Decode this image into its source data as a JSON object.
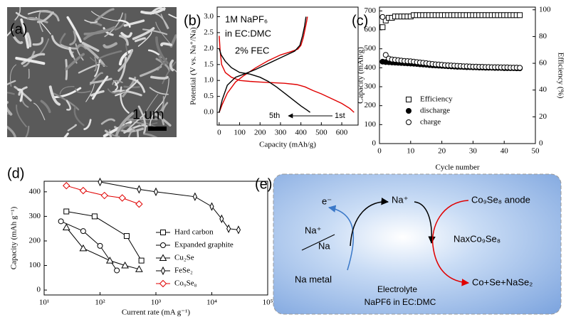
{
  "panel_a": {
    "label": "(a)",
    "scale_bar": "1 um"
  },
  "chart_data": [
    {
      "type": "line",
      "panel_label": "(b)",
      "annotations": [
        "1M NaPF₆",
        "in EC:DMC",
        "2% FEC",
        "5th",
        "1st"
      ],
      "xlabel": "Capacity (mAh/g)",
      "ylabel": "Potential (V vs. Na⁺/Na)",
      "xlim": [
        -10,
        680
      ],
      "xticks": [
        0,
        100,
        200,
        300,
        400,
        500,
        600
      ],
      "ylim": [
        -0.4,
        3.3
      ],
      "yticks": [
        {
          "value": 0,
          "label": "0.0"
        },
        0.5,
        {
          "value": 1,
          "label": "1.0"
        },
        1.5,
        {
          "value": 2,
          "label": "2.0"
        },
        2.5,
        {
          "value": 3,
          "label": "3.0"
        }
      ],
      "series": [
        {
          "color": "#e00000",
          "x": [
            0,
            5,
            12,
            30,
            60,
            100,
            150,
            200,
            260,
            320,
            380,
            420,
            460,
            500,
            550,
            600,
            640,
            660
          ],
          "values": [
            2.4,
            1.9,
            1.5,
            1.25,
            1.1,
            1.0,
            0.97,
            0.95,
            0.93,
            0.91,
            0.87,
            0.8,
            0.68,
            0.58,
            0.43,
            0.28,
            0.12,
            0.0
          ]
        },
        {
          "color": "#e00000",
          "x": [
            0,
            15,
            40,
            80,
            120,
            180,
            240,
            300,
            350,
            385,
            400,
            412,
            420,
            428,
            432
          ],
          "values": [
            0.0,
            0.25,
            0.6,
            0.95,
            1.15,
            1.4,
            1.62,
            1.8,
            1.9,
            1.98,
            2.1,
            2.35,
            2.6,
            2.85,
            3.0
          ]
        },
        {
          "color": "#000000",
          "x": [
            0,
            10,
            30,
            60,
            100,
            150,
            200,
            240,
            280,
            320,
            360,
            400,
            430,
            445
          ],
          "values": [
            2.0,
            1.8,
            1.6,
            1.4,
            1.25,
            1.2,
            1.1,
            0.97,
            0.8,
            0.6,
            0.4,
            0.2,
            0.07,
            0.0
          ]
        },
        {
          "color": "#000000",
          "x": [
            0,
            15,
            40,
            80,
            130,
            180,
            230,
            280,
            330,
            370,
            395,
            408,
            418,
            425
          ],
          "values": [
            0.0,
            0.4,
            0.85,
            1.1,
            1.22,
            1.35,
            1.5,
            1.65,
            1.8,
            1.92,
            2.1,
            2.4,
            2.7,
            3.0
          ]
        }
      ]
    },
    {
      "type": "scatter",
      "panel_label": "(c)",
      "xlabel": "Cycle number",
      "ylabel": "Capacity (mAh/g)",
      "y2label": "Efficiency (%)",
      "xlim": [
        0,
        50
      ],
      "xticks": [
        0,
        10,
        20,
        30,
        40,
        50
      ],
      "ylim": [
        0,
        720
      ],
      "yticks": [
        0,
        100,
        200,
        300,
        400,
        500,
        600,
        700
      ],
      "y2lim": [
        0,
        102
      ],
      "y2ticks": [
        0,
        20,
        40,
        60,
        80,
        100
      ],
      "x": [
        1,
        2,
        3,
        4,
        5,
        6,
        7,
        8,
        9,
        10,
        11,
        12,
        13,
        14,
        15,
        16,
        17,
        18,
        19,
        20,
        21,
        22,
        23,
        24,
        25,
        26,
        27,
        28,
        29,
        30,
        31,
        32,
        33,
        34,
        35,
        36,
        37,
        38,
        39,
        40,
        41,
        42,
        43,
        44,
        45
      ],
      "series": [
        {
          "name": "Efficiency",
          "axis": "y2",
          "marker": "square",
          "color": "#000000",
          "values": [
            87,
            92,
            94,
            94,
            95,
            95,
            95,
            95,
            95,
            95,
            96,
            96,
            96,
            96,
            96,
            96,
            96,
            96,
            96,
            96,
            96,
            96,
            96,
            96,
            96,
            96,
            96,
            96,
            96,
            96,
            96,
            96,
            96,
            96,
            96,
            96,
            96,
            96,
            96,
            96,
            96,
            96,
            96,
            96,
            96
          ]
        },
        {
          "name": "discharge",
          "marker": "filled-circle",
          "color": "#000000",
          "values": [
            432,
            430,
            429,
            428,
            427,
            426,
            425,
            424,
            423,
            422,
            421,
            420,
            418,
            417,
            416,
            414,
            413,
            412,
            411,
            410,
            409,
            408,
            407,
            406,
            405,
            405,
            404,
            403,
            403,
            402,
            402,
            401,
            401,
            400,
            400,
            400,
            399,
            399,
            399,
            398,
            398,
            398,
            398,
            397,
            397
          ]
        },
        {
          "name": "charge",
          "marker": "circle",
          "color": "#000000",
          "values": [
            668,
            468,
            448,
            444,
            442,
            440,
            438,
            436,
            435,
            434,
            432,
            430,
            428,
            426,
            424,
            422,
            420,
            418,
            417,
            416,
            414,
            413,
            412,
            411,
            410,
            409,
            408,
            408,
            407,
            406,
            406,
            405,
            405,
            404,
            404,
            403,
            403,
            403,
            402,
            402,
            402,
            401,
            401,
            401,
            400
          ]
        }
      ]
    },
    {
      "type": "line",
      "panel_label": "(d)",
      "xscale": "log",
      "xlabel": "Current rate (mA g⁻¹)",
      "ylabel": "Capacity (mAh g⁻¹)",
      "xlim": [
        10,
        100000
      ],
      "xticks": [
        {
          "value": 10,
          "label": "10¹"
        },
        {
          "value": 100,
          "label": "10²"
        },
        {
          "value": 1000,
          "label": "10³"
        },
        {
          "value": 10000,
          "label": "10⁴"
        },
        {
          "value": 100000,
          "label": "10⁵"
        }
      ],
      "ylim": [
        -20,
        443
      ],
      "yticks": [
        0,
        100,
        200,
        300,
        400
      ],
      "series": [
        {
          "name": "Hard carbon",
          "marker": "square",
          "color": "#000000",
          "x": [
            25,
            80,
            300,
            550
          ],
          "values": [
            320,
            300,
            220,
            120
          ]
        },
        {
          "name": "Expanded graphite",
          "marker": "circle",
          "color": "#000000",
          "x": [
            20,
            50,
            100,
            200
          ],
          "values": [
            280,
            240,
            180,
            80
          ]
        },
        {
          "name": "Cu₂Se",
          "marker": "triangle",
          "color": "#000000",
          "x": [
            25,
            50,
            150,
            280,
            500
          ],
          "values": [
            255,
            170,
            120,
            100,
            85
          ]
        },
        {
          "name": "FeSe₂",
          "marker": "thin-diamond",
          "color": "#000000",
          "x": [
            100,
            500,
            1000,
            5000,
            10000,
            15000,
            20000,
            30000
          ],
          "values": [
            440,
            410,
            400,
            380,
            340,
            290,
            250,
            245
          ]
        },
        {
          "name": "Co₉Se₈",
          "marker": "diamond",
          "color": "#e00000",
          "x": [
            25,
            50,
            120,
            250,
            500
          ],
          "values": [
            425,
            405,
            385,
            375,
            350
          ]
        }
      ]
    }
  ],
  "panel_e": {
    "label": "(e)",
    "electron": "e⁻",
    "na_ion": "Na⁺",
    "na": "Na",
    "na_metal": "Na metal",
    "na_ion_top": "Na⁺",
    "anode": "Co₉Se₈ anode",
    "intermediate": "NaxCo₉Se₈",
    "products": "Co+Se+NaSe₂",
    "electrolyte": "Electrolyte",
    "salt": "NaPF6 in EC:DMC"
  }
}
